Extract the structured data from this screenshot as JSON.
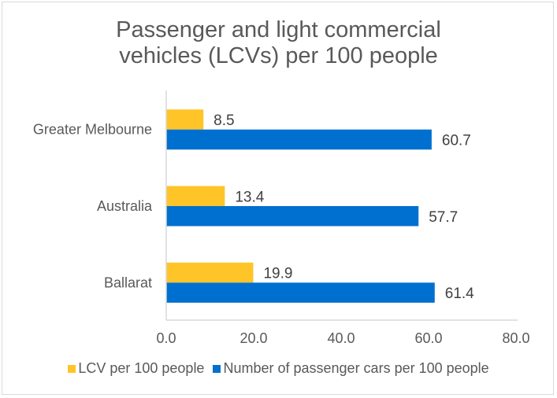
{
  "chart_data": {
    "type": "bar",
    "orientation": "horizontal",
    "title_lines": [
      "Passenger and light commercial",
      "vehicles (LCVs) per 100 people"
    ],
    "categories": [
      "Greater Melbourne",
      "Australia",
      "Ballarat"
    ],
    "series": [
      {
        "name": "LCV per 100 people",
        "color": "#FFC428",
        "values": [
          8.5,
          13.4,
          19.9
        ],
        "labels": [
          "8.5",
          "13.4",
          "19.9"
        ]
      },
      {
        "name": "Number of passenger cars per 100 people",
        "color": "#0070D0",
        "values": [
          60.7,
          57.7,
          61.4
        ],
        "labels": [
          "60.7",
          "57.7",
          "61.4"
        ]
      }
    ],
    "xlim": [
      0,
      80
    ],
    "xticks": [
      "0.0",
      "20.0",
      "40.0",
      "60.0",
      "80.0"
    ],
    "xlabel": "",
    "ylabel": "",
    "grid": false,
    "legend_position": "bottom"
  }
}
